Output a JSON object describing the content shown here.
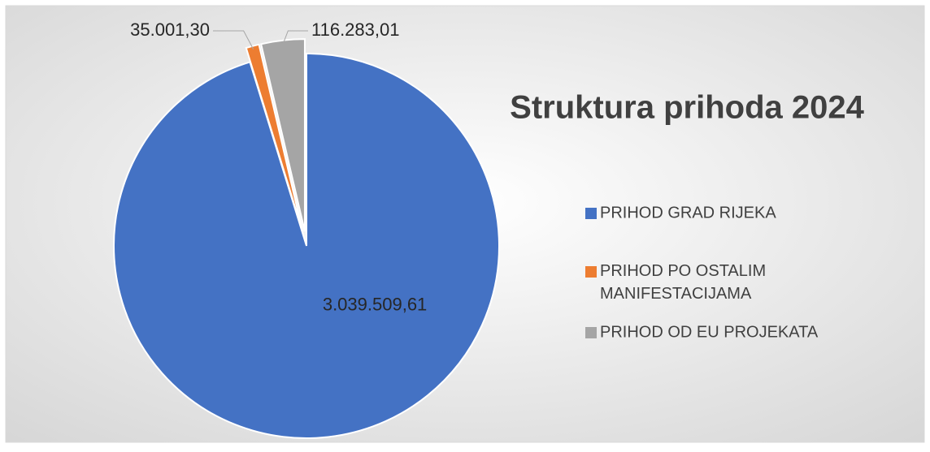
{
  "chart_data": {
    "type": "pie",
    "title": "Struktura prihoda 2024",
    "categories": [
      "PRIHOD GRAD RIJEKA",
      "PRIHOD PO OSTALIM MANIFESTACIJAMA",
      "PRIHOD OD EU PROJEKATA"
    ],
    "values": [
      3039509.61,
      35001.3,
      116283.01
    ],
    "value_labels": [
      "3.039.509,61",
      "35.001,30",
      "116.283,01"
    ],
    "colors": [
      "#4472c4",
      "#ed7d31",
      "#a5a5a5"
    ],
    "legend": "right"
  }
}
